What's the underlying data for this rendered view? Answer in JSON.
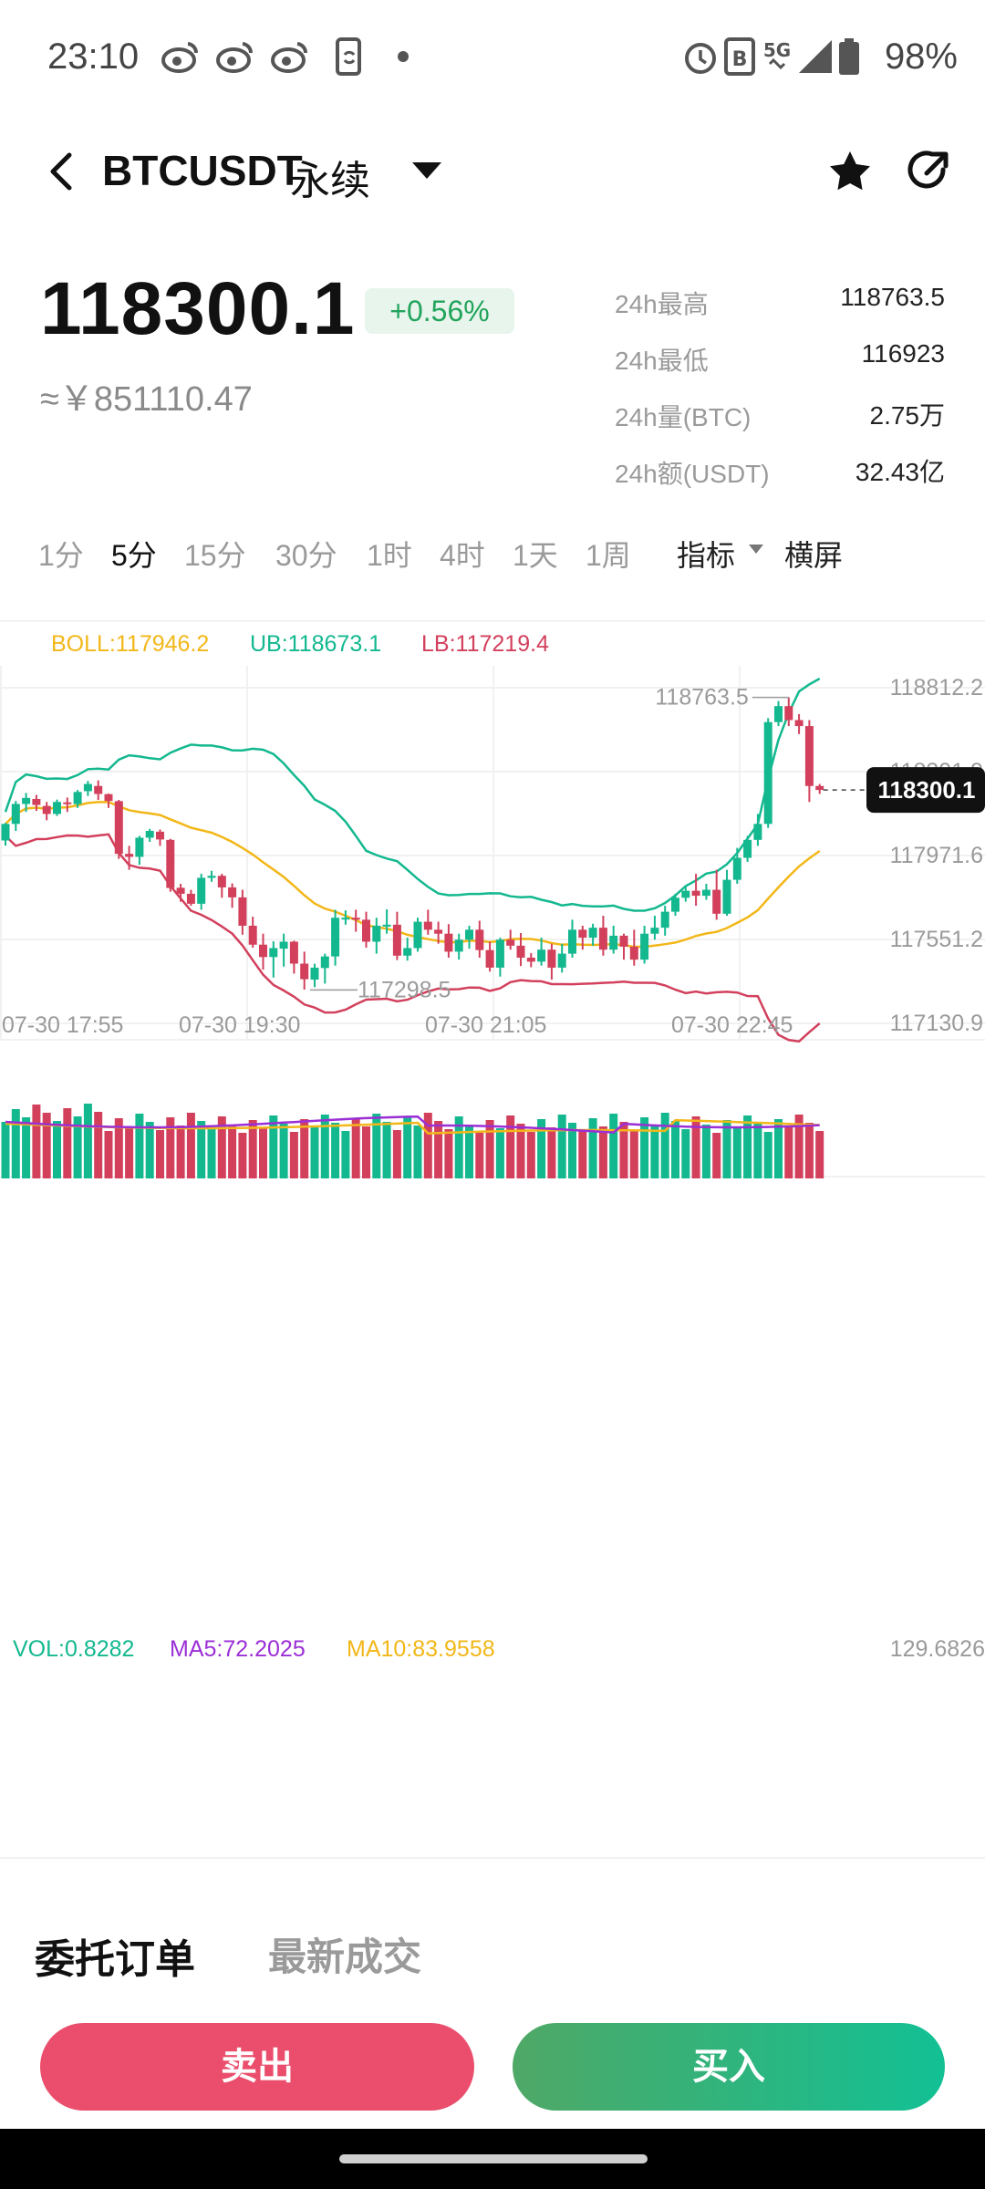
{
  "status_bar": {
    "time": "23:10",
    "battery": "98%",
    "icons": [
      "weibo-icon",
      "weibo-icon",
      "weibo-icon",
      "phone-sync-icon",
      "dot-icon",
      "alarm-icon",
      "data-b-icon",
      "5g-icon",
      "signal-icon",
      "battery-icon"
    ]
  },
  "header": {
    "title": "BTCUSDT",
    "subtitle": "永续"
  },
  "price": {
    "last": "118300.1",
    "change": "+0.56%",
    "cny": "≈￥851110.47"
  },
  "stats": [
    {
      "label": "24h最高",
      "value": "118763.5"
    },
    {
      "label": "24h最低",
      "value": "116923"
    },
    {
      "label": "24h量(BTC)",
      "value": "2.75万"
    },
    {
      "label": "24h额(USDT)",
      "value": "32.43亿"
    }
  ],
  "intervals": [
    "1分",
    "5分",
    "15分",
    "30分",
    "1时",
    "4时",
    "1天",
    "1周"
  ],
  "active_interval": "5分",
  "toolbar": {
    "indicator": "指标",
    "landscape": "横屏"
  },
  "boll": {
    "boll": "BOLL:117946.2",
    "ub": "UB:118673.1",
    "lb": "LB:117219.4"
  },
  "volume": {
    "vol": "VOL:0.8282",
    "ma5": "MA5:72.2025",
    "ma10": "MA10:83.9558",
    "max": "129.6826"
  },
  "chart_data": {
    "type": "candlestick",
    "price_ticks": [
      "118812.2",
      "118391.9",
      "117971.6",
      "117551.2",
      "117130.9"
    ],
    "price_range": [
      117130.9,
      118812.2
    ],
    "time_ticks": [
      "07-30 17:55",
      "07-30 19:30",
      "07-30 21:05",
      "07-30 22:45"
    ],
    "high_marker": "118763.5",
    "low_marker": "117298.5",
    "current_price": "118300.1",
    "candles": [
      [
        118047,
        118130,
        118021,
        118135
      ],
      [
        118130,
        118230,
        118095,
        118245
      ],
      [
        118230,
        118260,
        118190,
        118285
      ],
      [
        118255,
        118225,
        118195,
        118275
      ],
      [
        118220,
        118180,
        118148,
        118240
      ],
      [
        118180,
        118240,
        118170,
        118252
      ],
      [
        118238,
        118229,
        118190,
        118262
      ],
      [
        118229,
        118290,
        118210,
        118300
      ],
      [
        118294,
        118330,
        118270,
        118345
      ],
      [
        118320,
        118280,
        118250,
        118348
      ],
      [
        118279,
        118245,
        118210,
        118282
      ],
      [
        118244,
        117980,
        117955,
        118250
      ],
      [
        117980,
        117965,
        117900,
        118020
      ],
      [
        117965,
        118061,
        117925,
        118070
      ],
      [
        118061,
        118095,
        118040,
        118105
      ],
      [
        118091,
        118052,
        118020,
        118102
      ],
      [
        118050,
        117809,
        117790,
        118055
      ],
      [
        117810,
        117780,
        117740,
        117830
      ],
      [
        117780,
        117730,
        117720,
        117800
      ],
      [
        117730,
        117860,
        117700,
        117880
      ],
      [
        117860,
        117870,
        117840,
        117895
      ],
      [
        117870,
        117812,
        117760,
        117880
      ],
      [
        117812,
        117762,
        117710,
        117832
      ],
      [
        117762,
        117620,
        117575,
        117800
      ],
      [
        117620,
        117525,
        117510,
        117665
      ],
      [
        117525,
        117463,
        117400,
        117580
      ],
      [
        117463,
        117508,
        117360,
        117542
      ],
      [
        117505,
        117540,
        117415,
        117580
      ],
      [
        117540,
        117430,
        117380,
        117545
      ],
      [
        117430,
        117352,
        117300,
        117490
      ],
      [
        117350,
        117410,
        117312,
        117430
      ],
      [
        117408,
        117466,
        117330,
        117480
      ],
      [
        117466,
        117660,
        117420,
        117700
      ],
      [
        117660,
        117660,
        117625,
        117697
      ],
      [
        117660,
        117650,
        117590,
        117700
      ],
      [
        117650,
        117540,
        117510,
        117690
      ],
      [
        117540,
        117620,
        117480,
        117660
      ],
      [
        117620,
        117625,
        117580,
        117702
      ],
      [
        117625,
        117470,
        117448,
        117690
      ],
      [
        117470,
        117508,
        117445,
        117560
      ],
      [
        117508,
        117640,
        117490,
        117660
      ],
      [
        117640,
        117600,
        117575,
        117700
      ],
      [
        117600,
        117580,
        117530,
        117640
      ],
      [
        117580,
        117490,
        117460,
        117628
      ],
      [
        117490,
        117550,
        117450,
        117580
      ],
      [
        117550,
        117600,
        117505,
        117620
      ],
      [
        117600,
        117498,
        117460,
        117645
      ],
      [
        117498,
        117410,
        117390,
        117540
      ],
      [
        117410,
        117550,
        117365,
        117560
      ],
      [
        117550,
        117520,
        117500,
        117600
      ],
      [
        117520,
        117460,
        117418,
        117583
      ],
      [
        117460,
        117440,
        117412,
        117483
      ],
      [
        117440,
        117500,
        117420,
        117560
      ],
      [
        117500,
        117410,
        117350,
        117530
      ],
      [
        117410,
        117480,
        117385,
        117530
      ],
      [
        117480,
        117600,
        117460,
        117650
      ],
      [
        117600,
        117560,
        117500,
        117620
      ],
      [
        117560,
        117610,
        117520,
        117630
      ],
      [
        117610,
        117500,
        117470,
        117670
      ],
      [
        117500,
        117570,
        117480,
        117620
      ],
      [
        117570,
        117515,
        117450,
        117580
      ],
      [
        117515,
        117450,
        117420,
        117600
      ],
      [
        117450,
        117580,
        117430,
        117620
      ],
      [
        117580,
        117610,
        117550,
        117670
      ],
      [
        117610,
        117690,
        117570,
        117720
      ],
      [
        117690,
        117760,
        117670,
        117780
      ],
      [
        117760,
        117795,
        117740,
        117820
      ],
      [
        117795,
        117770,
        117720,
        117880
      ],
      [
        117770,
        117800,
        117750,
        117830
      ],
      [
        117800,
        117680,
        117650,
        117900
      ],
      [
        117680,
        117850,
        117670,
        117900
      ],
      [
        117850,
        117960,
        117830,
        118010
      ],
      [
        117960,
        118050,
        117940,
        118070
      ],
      [
        118050,
        118130,
        118020,
        118180
      ],
      [
        118130,
        118640,
        118110,
        118660
      ],
      [
        118640,
        118720,
        118620,
        118745
      ],
      [
        118720,
        118650,
        118620,
        118763.5
      ],
      [
        118650,
        118620,
        118580,
        118680
      ],
      [
        118620,
        118320,
        118240,
        118650
      ],
      [
        118320,
        118300.1,
        118280,
        118330
      ]
    ]
  }
}
